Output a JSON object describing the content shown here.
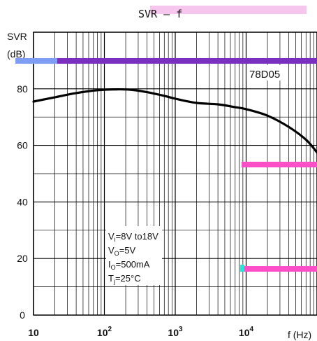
{
  "chart_data": {
    "type": "line",
    "title": "SVR — f",
    "ylabel_line1": "SVR",
    "ylabel_line2": "(dB)",
    "xlabel": "f (Hz)",
    "xscale": "log",
    "xlim": [
      10,
      100000
    ],
    "ylim": [
      0,
      100
    ],
    "grid": true,
    "x_tick_labels": [
      {
        "value": 10,
        "base": "10",
        "exp": ""
      },
      {
        "value": 100,
        "base": "10",
        "exp": "2"
      },
      {
        "value": 1000,
        "base": "10",
        "exp": "3"
      },
      {
        "value": 10000,
        "base": "10",
        "exp": "4"
      }
    ],
    "y_ticks": [
      0,
      20,
      40,
      60,
      80
    ],
    "series": [
      {
        "name": "78D05",
        "x": [
          10,
          20,
          40,
          80,
          150,
          250,
          400,
          700,
          1000,
          2000,
          4000,
          7000,
          10000,
          20000,
          40000,
          70000,
          100000
        ],
        "y": [
          75.5,
          77,
          78.5,
          79.5,
          79.8,
          79.6,
          78.8,
          77.5,
          76.5,
          75,
          74.5,
          73.5,
          72.8,
          70.5,
          66.5,
          62,
          57.5
        ]
      }
    ],
    "conditions": [
      {
        "sym": "V",
        "sub": "i",
        "val": "=8V to18V"
      },
      {
        "sym": "V",
        "sub": "O",
        "val": "=5V"
      },
      {
        "sym": "I",
        "sub": "O",
        "val": "=500mA"
      },
      {
        "sym": "T",
        "sub": "j",
        "val": "=25°C"
      }
    ],
    "colors": {
      "curve": "#000000",
      "grid": "#000000",
      "highlight_purple": "#7b2fbf",
      "highlight_pink": "#ff4fc8",
      "highlight_lightpink": "#f7c6ee",
      "highlight_blue": "#7fb1ff",
      "highlight_cyan": "#29e3d6"
    }
  }
}
